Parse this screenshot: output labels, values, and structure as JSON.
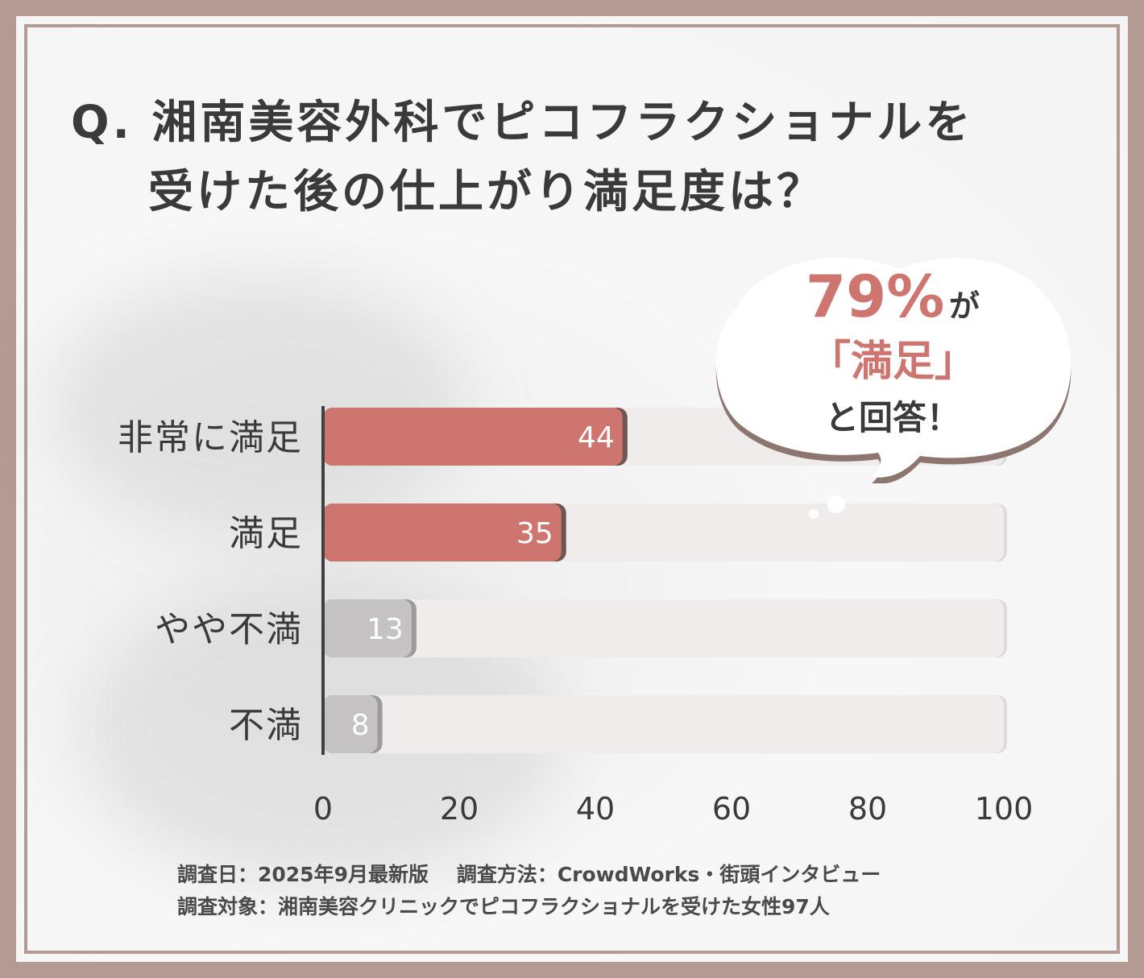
{
  "title": {
    "line1": "Q. 湘南美容外科でピコフラクショナルを",
    "line2": "受けた後の仕上がり満足度は？"
  },
  "callout": {
    "percent": "79%",
    "particle": "が",
    "satisfied": "「満足」",
    "answered": "と回答！"
  },
  "footer": {
    "survey_date": "調査日：2025年9月最新版",
    "survey_method": "調査方法：CrowdWorks・街頭インタビュー",
    "survey_target": "調査対象：湘南美容クリニックでピコフラクショナルを受けた女性97人"
  },
  "colors": {
    "highlight": "#cf7570",
    "neutral": "#c4c2c2",
    "track": "#efeceb",
    "frame": "#b39a92",
    "text": "#3a3a3a"
  },
  "chart_data": {
    "type": "bar",
    "orientation": "horizontal",
    "categories": [
      "非常に満足",
      "満足",
      "やや不満",
      "不満"
    ],
    "values": [
      44,
      35,
      13,
      8
    ],
    "value_labels": [
      "44",
      "35",
      "13",
      "8"
    ],
    "highlighted": [
      true,
      true,
      false,
      false
    ],
    "xlim": [
      0,
      100
    ],
    "xticks": [
      "0",
      "20",
      "40",
      "60",
      "80",
      "100"
    ],
    "grid": false
  }
}
